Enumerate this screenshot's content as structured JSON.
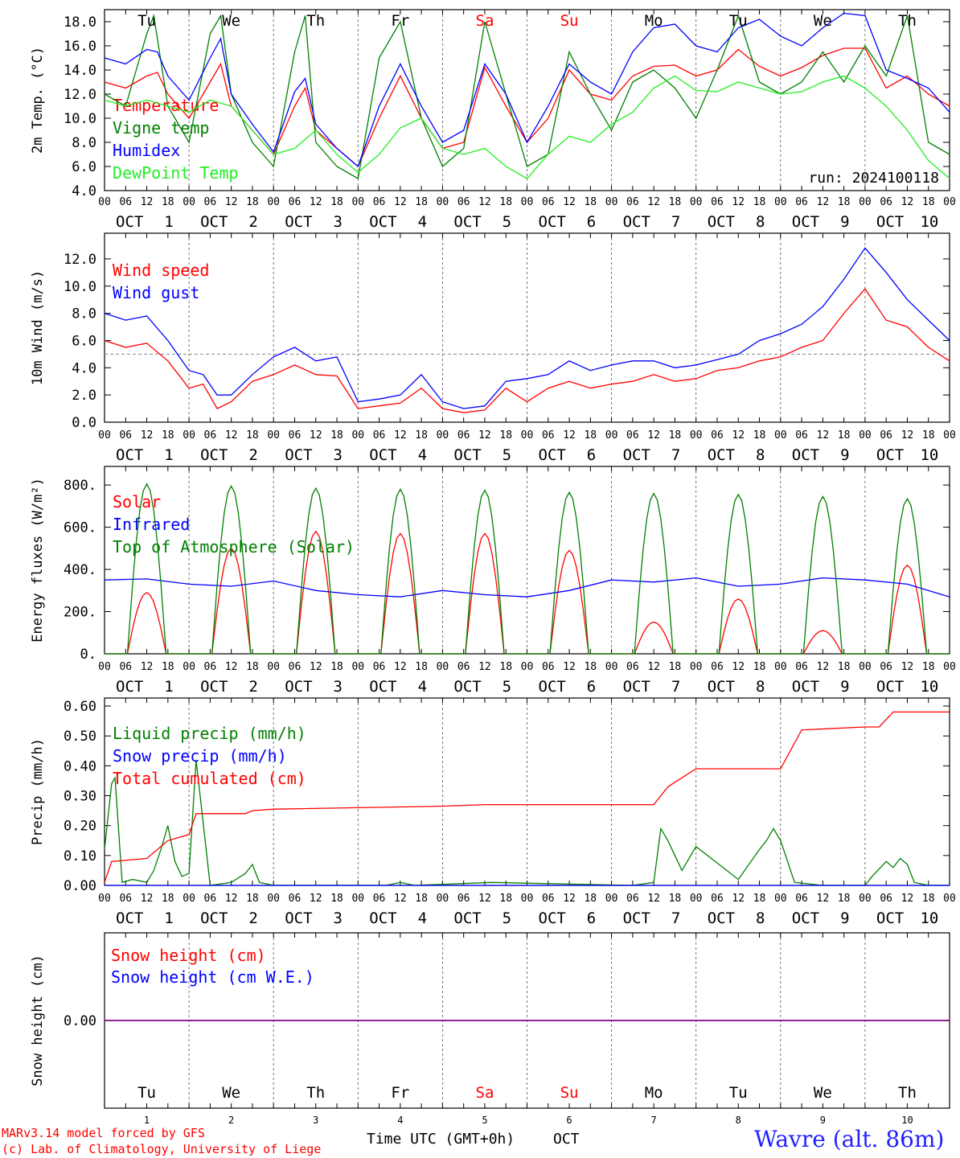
{
  "days": [
    {
      "abbr": "Tu",
      "weekend": false,
      "month": "OCT",
      "num": "1"
    },
    {
      "abbr": "We",
      "weekend": false,
      "month": "OCT",
      "num": "2"
    },
    {
      "abbr": "Th",
      "weekend": false,
      "month": "OCT",
      "num": "3"
    },
    {
      "abbr": "Fr",
      "weekend": false,
      "month": "OCT",
      "num": "4"
    },
    {
      "abbr": "Sa",
      "weekend": true,
      "month": "OCT",
      "num": "5"
    },
    {
      "abbr": "Su",
      "weekend": true,
      "month": "OCT",
      "num": "6"
    },
    {
      "abbr": "Mo",
      "weekend": false,
      "month": "OCT",
      "num": "7"
    },
    {
      "abbr": "Tu",
      "weekend": false,
      "month": "OCT",
      "num": "8"
    },
    {
      "abbr": "We",
      "weekend": false,
      "month": "OCT",
      "num": "9"
    },
    {
      "abbr": "Th",
      "weekend": false,
      "month": "OCT",
      "num": "10"
    }
  ],
  "hour_ticks": [
    "00",
    "06",
    "12",
    "18"
  ],
  "colors": {
    "red": "#ff0000",
    "green": "#008000",
    "blue": "#0000ff",
    "lightgreen": "#22ee22",
    "purple": "#800080",
    "grid": "#555555"
  },
  "chart_data": [
    {
      "type": "line",
      "ylabel": "2m Temp. (°C)",
      "ylim": [
        4,
        19
      ],
      "yticks": [
        "4.0",
        "6.0",
        "8.0",
        "10.0",
        "12.0",
        "14.0",
        "16.0",
        "18.0"
      ],
      "annotation": "run: 2024100118",
      "series": [
        {
          "name": "Temperature",
          "color": "red",
          "x": [
            0,
            6,
            12,
            15,
            18,
            24,
            30,
            33,
            36,
            42,
            48,
            54,
            57,
            60,
            66,
            72,
            78,
            84,
            90,
            96,
            102,
            108,
            114,
            120,
            126,
            132,
            138,
            144,
            150,
            156,
            162,
            168,
            174,
            180,
            186,
            192,
            198,
            204,
            210,
            216,
            222,
            228,
            234,
            240
          ],
          "y": [
            13,
            12.5,
            13.5,
            13.8,
            12,
            10,
            13,
            14.5,
            11,
            9,
            7,
            11,
            12.5,
            9,
            7.5,
            6,
            10,
            13.5,
            10,
            7.5,
            8,
            14.2,
            11,
            8,
            10,
            14,
            12,
            11.5,
            13.5,
            14.3,
            14.4,
            13.5,
            14,
            15.7,
            14.3,
            13.5,
            14.2,
            15.2,
            15.8,
            15.8,
            12.5,
            13.5,
            12,
            11
          ]
        },
        {
          "name": "Vigne temp",
          "color": "green",
          "x": [
            0,
            6,
            12,
            14,
            18,
            22,
            24,
            30,
            33,
            36,
            42,
            48,
            54,
            57,
            60,
            66,
            72,
            78,
            84,
            90,
            96,
            102,
            108,
            114,
            120,
            126,
            132,
            138,
            144,
            150,
            156,
            162,
            168,
            174,
            180,
            186,
            192,
            198,
            204,
            210,
            216,
            222,
            228,
            234,
            240
          ],
          "y": [
            12,
            11,
            17,
            18.5,
            11,
            9,
            8,
            17,
            18.5,
            12,
            8,
            6,
            15.5,
            18.5,
            8,
            6,
            5,
            15,
            18,
            10,
            6,
            7.5,
            18,
            12,
            6,
            7,
            15.5,
            12,
            9,
            13,
            14,
            12.5,
            10,
            14,
            18.5,
            13,
            12,
            13,
            15.5,
            13,
            16,
            13.5,
            18.5,
            8,
            7
          ]
        },
        {
          "name": "Humidex",
          "color": "blue",
          "x": [
            0,
            6,
            12,
            15,
            18,
            24,
            30,
            33,
            36,
            42,
            48,
            54,
            57,
            60,
            66,
            72,
            78,
            84,
            90,
            96,
            102,
            108,
            114,
            120,
            126,
            132,
            138,
            144,
            150,
            156,
            162,
            168,
            174,
            180,
            186,
            192,
            198,
            204,
            210,
            216,
            222,
            228,
            234,
            240
          ],
          "y": [
            15,
            14.5,
            15.7,
            15.5,
            13.5,
            11.5,
            15,
            16.6,
            12,
            9.5,
            7.2,
            12.2,
            13.3,
            9.5,
            7.5,
            6,
            11,
            14.5,
            11,
            8,
            9,
            14.5,
            12,
            8,
            11,
            14.5,
            13,
            12,
            15.5,
            17.5,
            17.8,
            16,
            15.5,
            17.5,
            18.2,
            16.8,
            16,
            17.5,
            18.7,
            18.5,
            14,
            13.3,
            12.5,
            10.5
          ]
        },
        {
          "name": "DewPoint Temp",
          "color": "lightgreen",
          "x": [
            0,
            6,
            12,
            18,
            24,
            30,
            36,
            42,
            48,
            54,
            60,
            66,
            72,
            78,
            84,
            90,
            96,
            102,
            108,
            114,
            120,
            126,
            132,
            138,
            144,
            150,
            156,
            162,
            168,
            174,
            180,
            186,
            192,
            198,
            204,
            210,
            216,
            222,
            228,
            234,
            240
          ],
          "y": [
            11.5,
            11,
            11.5,
            11,
            10.5,
            11.5,
            11,
            9,
            7,
            7.5,
            9,
            7,
            5.5,
            7,
            9.2,
            10,
            7.5,
            7,
            7.5,
            6,
            5,
            7,
            8.5,
            8,
            9.5,
            10.5,
            12.5,
            13.5,
            12.3,
            12.2,
            13,
            12.5,
            12,
            12.2,
            13,
            13.5,
            12.5,
            11,
            9,
            6.5,
            5
          ]
        }
      ]
    },
    {
      "type": "line",
      "ylabel": "10m Wind (m/s)",
      "ylim": [
        0,
        13
      ],
      "yticks": [
        "0.0",
        "2.0",
        "4.0",
        "6.0",
        "8.0",
        "10.0",
        "12.0"
      ],
      "ref_line": 5,
      "series": [
        {
          "name": "Wind speed",
          "color": "red",
          "x": [
            0,
            6,
            12,
            18,
            24,
            28,
            32,
            36,
            42,
            48,
            54,
            60,
            66,
            72,
            78,
            84,
            90,
            96,
            102,
            108,
            114,
            120,
            126,
            132,
            138,
            144,
            150,
            156,
            162,
            168,
            174,
            180,
            186,
            192,
            198,
            204,
            210,
            216,
            222,
            228,
            234,
            240
          ],
          "y": [
            6,
            5.5,
            5.8,
            4.5,
            2.5,
            2.8,
            1,
            1.5,
            3,
            3.5,
            4.2,
            3.5,
            3.4,
            1,
            1.2,
            1.4,
            2.5,
            1,
            0.7,
            0.9,
            2.5,
            1.5,
            2.5,
            3,
            2.5,
            2.8,
            3,
            3.5,
            3,
            3.2,
            3.8,
            4,
            4.5,
            4.8,
            5.5,
            6,
            8,
            9.8,
            7.5,
            7,
            5.5,
            4.5
          ]
        },
        {
          "name": "Wind gust",
          "color": "blue",
          "x": [
            0,
            6,
            12,
            18,
            24,
            28,
            32,
            36,
            42,
            48,
            54,
            60,
            66,
            72,
            78,
            84,
            90,
            96,
            102,
            108,
            114,
            120,
            126,
            132,
            138,
            144,
            150,
            156,
            162,
            168,
            174,
            180,
            186,
            192,
            198,
            204,
            210,
            216,
            222,
            228,
            234,
            240
          ],
          "y": [
            8,
            7.5,
            7.8,
            6,
            3.8,
            3.5,
            2,
            2,
            3.5,
            4.8,
            5.5,
            4.5,
            4.8,
            1.5,
            1.7,
            2,
            3.5,
            1.5,
            1,
            1.2,
            3,
            3.2,
            3.5,
            4.5,
            3.8,
            4.2,
            4.5,
            4.5,
            4,
            4.2,
            4.6,
            5,
            6,
            6.5,
            7.2,
            8.5,
            10.5,
            12.8,
            11,
            9,
            7.5,
            6
          ]
        }
      ]
    },
    {
      "type": "line",
      "ylabel": "Energy fluxes (W/m²)",
      "ylim": [
        0,
        850
      ],
      "yticks": [
        "0.",
        "200.",
        "400.",
        "600.",
        "800."
      ],
      "series": [
        {
          "name": "Solar",
          "color": "red",
          "peaks": [
            290,
            500,
            580,
            570,
            570,
            490,
            150,
            260,
            110,
            420
          ]
        },
        {
          "name": "Infrared",
          "color": "blue",
          "x": [
            0,
            12,
            24,
            36,
            48,
            60,
            72,
            84,
            96,
            108,
            120,
            132,
            144,
            156,
            168,
            180,
            192,
            204,
            216,
            228,
            240
          ],
          "y": [
            350,
            355,
            330,
            320,
            345,
            300,
            280,
            270,
            300,
            280,
            270,
            300,
            350,
            340,
            360,
            320,
            330,
            360,
            350,
            330,
            270
          ]
        },
        {
          "name": "Top of Atmosphere (Solar)",
          "color": "green",
          "peaks": [
            805,
            795,
            785,
            780,
            775,
            765,
            760,
            755,
            745,
            735
          ]
        }
      ]
    },
    {
      "type": "line",
      "ylabel": "Precip (mm/h)",
      "ylim": [
        0,
        0.6
      ],
      "yticks": [
        "0.00",
        "0.10",
        "0.20",
        "0.30",
        "0.40",
        "0.50",
        "0.60"
      ],
      "series": [
        {
          "name": "Liquid precip (mm/h)",
          "color": "green",
          "x": [
            0,
            2,
            3,
            5,
            8,
            12,
            14,
            16,
            18,
            20,
            22,
            24,
            26,
            30,
            36,
            40,
            42,
            44,
            48,
            80,
            84,
            88,
            110,
            150,
            156,
            158,
            160,
            162,
            164,
            168,
            180,
            186,
            188,
            190,
            192,
            196,
            204,
            216,
            218,
            222,
            224,
            226,
            228,
            230,
            234,
            240
          ],
          "y": [
            0.12,
            0.34,
            0.36,
            0.01,
            0.02,
            0.01,
            0.05,
            0.12,
            0.2,
            0.08,
            0.03,
            0.04,
            0.42,
            0,
            0.01,
            0.04,
            0.07,
            0.01,
            0,
            0,
            0.01,
            0,
            0.01,
            0,
            0.01,
            0.19,
            0.15,
            0.1,
            0.05,
            0.13,
            0.02,
            0.12,
            0.15,
            0.19,
            0.15,
            0.01,
            0,
            0,
            0.03,
            0.08,
            0.06,
            0.09,
            0.07,
            0.01,
            0,
            0
          ]
        },
        {
          "name": "Snow precip (mm/h)",
          "color": "blue",
          "x": [
            0,
            240
          ],
          "y": [
            0,
            0
          ]
        },
        {
          "name": "Total cumulated (cm)",
          "color": "red",
          "x": [
            0,
            2,
            12,
            18,
            24,
            26,
            40,
            42,
            48,
            96,
            108,
            156,
            160,
            168,
            192,
            198,
            216,
            220,
            224,
            240
          ],
          "y": [
            0.01,
            0.08,
            0.09,
            0.15,
            0.17,
            0.24,
            0.24,
            0.25,
            0.255,
            0.265,
            0.27,
            0.27,
            0.33,
            0.39,
            0.39,
            0.52,
            0.53,
            0.53,
            0.58,
            0.58
          ]
        }
      ]
    },
    {
      "type": "line",
      "ylabel": "Snow height (cm)",
      "ylim": [
        -1,
        1
      ],
      "yticks": [
        "0.00"
      ],
      "series": [
        {
          "name": "Snow height (cm)",
          "color": "red",
          "x": [
            0,
            240
          ],
          "y": [
            0,
            0
          ]
        },
        {
          "name": "Snow height (cm W.E.)",
          "color": "blue",
          "x": [
            0,
            240
          ],
          "y": [
            0,
            0
          ]
        }
      ]
    }
  ],
  "footer": {
    "credit1": "MARv3.14 model forced by GFS",
    "credit2": "(c) Lab. of Climatology, University of Liege",
    "xlabel": "Time UTC (GMT+0h)",
    "month": "OCT",
    "station": "Wavre (alt. 86m)"
  }
}
